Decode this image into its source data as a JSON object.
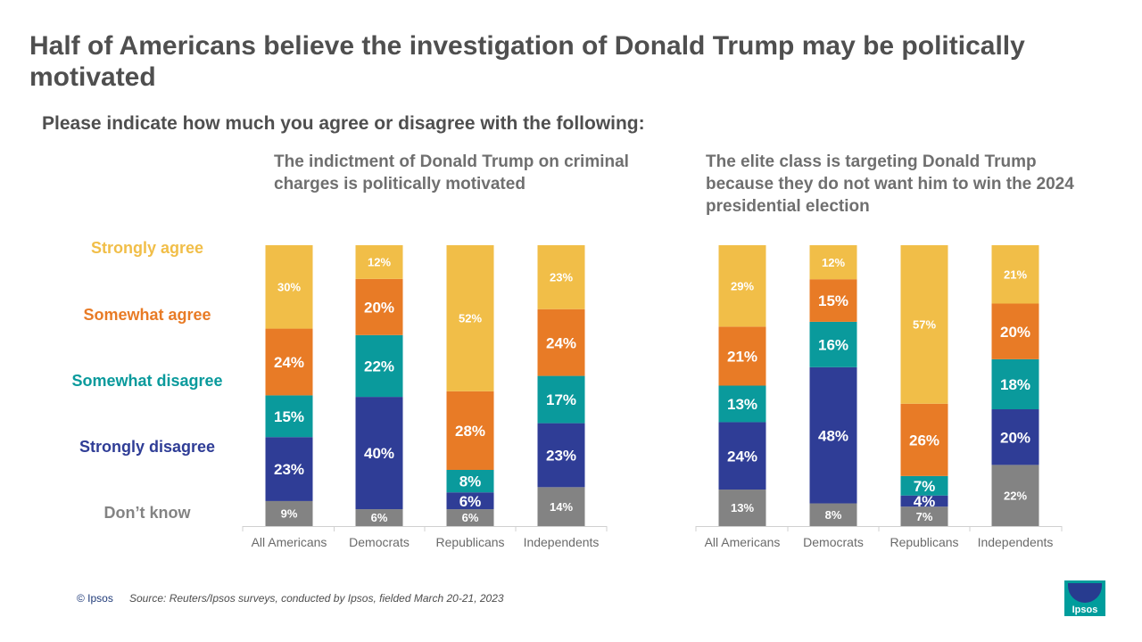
{
  "title": "Half of Americans believe the investigation of Donald Trump may be politically motivated",
  "subtitle": "Please indicate how much you agree or disagree with the following:",
  "footer": {
    "copyright": "© Ipsos",
    "source": "Source: Reuters/Ipsos surveys, conducted by Ipsos, fielded March 20-21, 2023",
    "logo_text": "Ipsos"
  },
  "colors": {
    "strongly_agree": "#f1be48",
    "somewhat_agree": "#e87b26",
    "somewhat_disagree": "#0a9a9c",
    "strongly_disagree": "#2f3d96",
    "dont_know": "#838383"
  },
  "chart_data": {
    "type": "bar",
    "stacked": true,
    "normalized_percent": true,
    "legend": [
      {
        "key": "strongly_agree",
        "label": "Strongly agree"
      },
      {
        "key": "somewhat_agree",
        "label": "Somewhat agree"
      },
      {
        "key": "somewhat_disagree",
        "label": "Somewhat disagree"
      },
      {
        "key": "strongly_disagree",
        "label": "Strongly disagree"
      },
      {
        "key": "dont_know",
        "label": "Don’t know"
      }
    ],
    "panels": [
      {
        "question": "The indictment of Donald Trump on criminal charges is politically  motivated",
        "categories": [
          "All Americans",
          "Democrats",
          "Republicans",
          "Independents"
        ],
        "series": [
          {
            "key": "dont_know",
            "name": "Don’t know",
            "values": [
              9,
              6,
              6,
              14
            ]
          },
          {
            "key": "strongly_disagree",
            "name": "Strongly disagree",
            "values": [
              23,
              40,
              6,
              23
            ]
          },
          {
            "key": "somewhat_disagree",
            "name": "Somewhat disagree",
            "values": [
              15,
              22,
              8,
              17
            ]
          },
          {
            "key": "somewhat_agree",
            "name": "Somewhat agree",
            "values": [
              24,
              20,
              28,
              24
            ]
          },
          {
            "key": "strongly_agree",
            "name": "Strongly agree",
            "values": [
              30,
              12,
              52,
              23
            ]
          }
        ]
      },
      {
        "question": "The elite class is targeting Donald Trump because they do not want him to win the 2024 presidential election",
        "categories": [
          "All Americans",
          "Democrats",
          "Republicans",
          "Independents"
        ],
        "series": [
          {
            "key": "dont_know",
            "name": "Don’t know",
            "values": [
              13,
              8,
              7,
              22
            ]
          },
          {
            "key": "strongly_disagree",
            "name": "Strongly disagree",
            "values": [
              24,
              48,
              4,
              20
            ]
          },
          {
            "key": "somewhat_disagree",
            "name": "Somewhat disagree",
            "values": [
              13,
              16,
              7,
              18
            ]
          },
          {
            "key": "somewhat_agree",
            "name": "Somewhat agree",
            "values": [
              21,
              15,
              26,
              20
            ]
          },
          {
            "key": "strongly_agree",
            "name": "Strongly agree",
            "values": [
              29,
              12,
              57,
              21
            ]
          }
        ]
      }
    ]
  }
}
